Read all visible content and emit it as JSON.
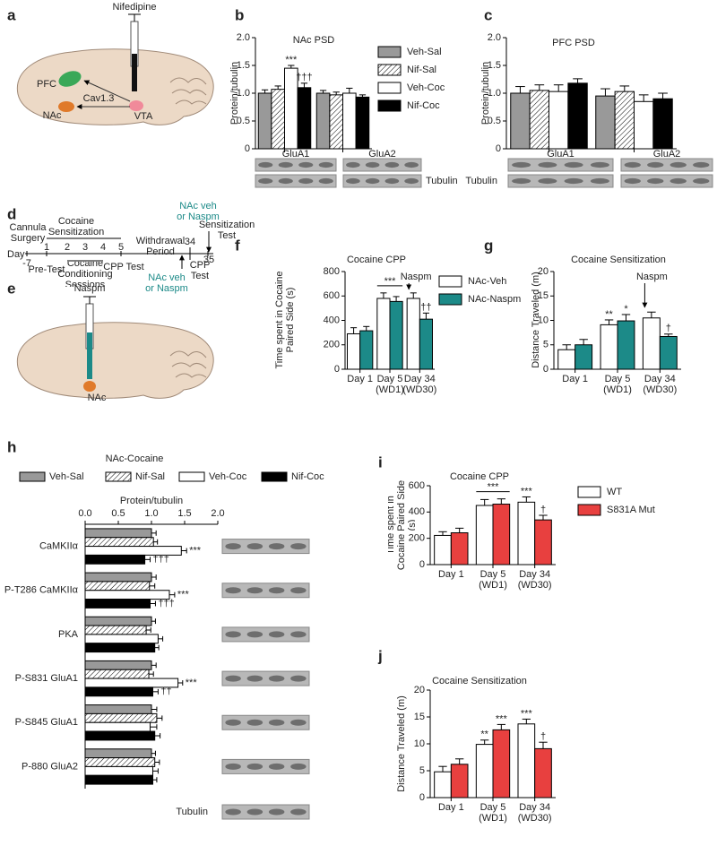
{
  "panel_labels": [
    "a",
    "b",
    "c",
    "d",
    "e",
    "f",
    "g",
    "h",
    "i",
    "j"
  ],
  "panel_a": {
    "drug": "Nifedipine",
    "region_1": "PFC",
    "channel": "Cav1.3",
    "region_2": "NAc",
    "region_3": "VTA"
  },
  "panel_d": {
    "start": "Cannula Surgery",
    "phase": "Cocaine Sensitization",
    "withdrawal": "Withdrawal Period",
    "injection_top": "NAc veh or Naspm",
    "final_test": "Sensitization Test",
    "day_label": "Day",
    "days": [
      "-7",
      "1",
      "2",
      "3",
      "4",
      "5",
      "34",
      "35"
    ],
    "pretest": "Pre-Test",
    "conditioning": "Cocaine Conditioning Sessions",
    "cpp_test_1": "CPP Test",
    "injection_bottom": "NAc veh or Naspm",
    "cpp_test_2": "CPP Test"
  },
  "panel_e": {
    "drug": "Naspm",
    "region": "NAc"
  },
  "chart_data": [
    {
      "type": "bar",
      "title": "NAc PSD",
      "ylabel": "Protein/tubulin",
      "categories": [
        "GluA1",
        "GluA2"
      ],
      "series": [
        {
          "name": "Veh-Sal",
          "color": "#999999",
          "values": [
            1.0,
            1.0
          ],
          "errors": [
            0.06,
            0.05
          ]
        },
        {
          "name": "Nif-Sal",
          "color": "#ffffff",
          "pattern": "hatch",
          "values": [
            1.07,
            0.97
          ],
          "errors": [
            0.06,
            0.05
          ]
        },
        {
          "name": "Veh-Coc",
          "color": "#ffffff",
          "values": [
            1.45,
            1.0
          ],
          "errors": [
            0.05,
            0.09
          ]
        },
        {
          "name": "Nif-Coc",
          "color": "#000000",
          "values": [
            1.1,
            0.93
          ],
          "errors": [
            0.08,
            0.04
          ]
        }
      ],
      "ylim": [
        0,
        2
      ],
      "yticks": [
        0,
        0.5,
        {
          "value": 1,
          "label": "1.0"
        },
        1.5,
        {
          "value": 2,
          "label": "2.0"
        }
      ],
      "legend": true,
      "annotations": [
        "***",
        "†††"
      ],
      "blot_labels": [
        "Tubulin"
      ]
    },
    {
      "type": "bar",
      "title": "PFC PSD",
      "ylabel": "Protein/tubulin",
      "categories": [
        "GluA1",
        "GluA2"
      ],
      "series": [
        {
          "name": "Veh-Sal",
          "color": "#999999",
          "values": [
            1.0,
            0.95
          ],
          "errors": [
            0.12,
            0.13
          ]
        },
        {
          "name": "Nif-Sal",
          "color": "#ffffff",
          "pattern": "hatch",
          "values": [
            1.05,
            1.03
          ],
          "errors": [
            0.1,
            0.1
          ]
        },
        {
          "name": "Veh-Coc",
          "color": "#ffffff",
          "values": [
            1.03,
            0.85
          ],
          "errors": [
            0.12,
            0.12
          ]
        },
        {
          "name": "Nif-Coc",
          "color": "#000000",
          "values": [
            1.18,
            0.9
          ],
          "errors": [
            0.08,
            0.1
          ]
        }
      ],
      "ylim": [
        0,
        2
      ],
      "yticks": [
        0,
        0.5,
        {
          "value": 1,
          "label": "1.0"
        },
        1.5,
        {
          "value": 2,
          "label": "2.0"
        }
      ],
      "legend": false,
      "annotations": [],
      "blot_labels": [
        "Tubulin"
      ]
    },
    {
      "type": "bar",
      "title": "Cocaine CPP",
      "ylabel": "Time spent in Cocaine Paired Side (s)",
      "categories": [
        "Day 1",
        "Day 5 (WD1)",
        "Day 34 (WD30)"
      ],
      "series": [
        {
          "name": "NAc-Veh",
          "color": "#ffffff",
          "values": [
            290,
            580,
            580
          ],
          "errors": [
            50,
            45,
            45
          ]
        },
        {
          "name": "NAc-Naspm",
          "color": "#1c8a88",
          "values": [
            315,
            555,
            410
          ],
          "errors": [
            35,
            40,
            50
          ]
        }
      ],
      "ylim": [
        0,
        800
      ],
      "yticks": [
        0,
        200,
        400,
        600,
        800
      ],
      "legend": true,
      "annotations": [
        "***",
        "Naspm",
        "††"
      ]
    },
    {
      "type": "bar",
      "title": "Cocaine Sensitization",
      "ylabel": "Distance Traveled (m)",
      "categories": [
        "Day 1",
        "Day 5 (WD1)",
        "Day 34 (WD30)"
      ],
      "series": [
        {
          "name": "NAc-Veh",
          "color": "#ffffff",
          "values": [
            4.0,
            9.1,
            10.5
          ],
          "errors": [
            1.0,
            1.0,
            1.2
          ]
        },
        {
          "name": "NAc-Naspm",
          "color": "#1c8a88",
          "values": [
            5.0,
            9.9,
            6.7
          ],
          "errors": [
            1.1,
            1.3,
            0.5
          ]
        }
      ],
      "ylim": [
        0,
        20
      ],
      "yticks": [
        0,
        5,
        10,
        15,
        20
      ],
      "legend": false,
      "annotations": [
        "**",
        "*",
        "Naspm",
        "†"
      ]
    },
    {
      "type": "bar",
      "orientation": "horizontal",
      "title": "NAc-Cocaine",
      "xlabel": "Protein/tubulin",
      "categories": [
        "CaMKIIα",
        "P-T286 CaMKIIα",
        "PKA",
        "P-S831 GluA1",
        "P-S845 GluA1",
        "P-880 GluA2"
      ],
      "series": [
        {
          "name": "Veh-Sal",
          "color": "#999999",
          "values": [
            1.0,
            1.0,
            1.0,
            1.0,
            1.0,
            1.0
          ],
          "errors": [
            0.07,
            0.07,
            0.06,
            0.07,
            0.08,
            0.06
          ]
        },
        {
          "name": "Nif-Sal",
          "color": "#ffffff",
          "pattern": "hatch",
          "values": [
            1.03,
            0.97,
            0.92,
            0.96,
            1.08,
            1.05
          ],
          "errors": [
            0.06,
            0.08,
            0.07,
            0.07,
            0.08,
            0.07
          ]
        },
        {
          "name": "Veh-Coc",
          "color": "#ffffff",
          "values": [
            1.45,
            1.27,
            1.1,
            1.4,
            0.98,
            1.02
          ],
          "errors": [
            0.08,
            0.08,
            0.07,
            0.07,
            0.1,
            0.08
          ]
        },
        {
          "name": "Nif-Coc",
          "color": "#000000",
          "values": [
            0.9,
            0.98,
            1.05,
            1.02,
            1.05,
            1.02
          ],
          "errors": [
            0.08,
            0.08,
            0.06,
            0.08,
            0.08,
            0.06
          ]
        }
      ],
      "xlim": [
        0,
        2
      ],
      "xticks": [
        {
          "value": 0,
          "label": "0.0"
        },
        0.5,
        {
          "value": 1,
          "label": "1.0"
        },
        1.5,
        {
          "value": 2,
          "label": "2.0"
        }
      ],
      "legend": true,
      "annotations": [
        "***",
        "†††",
        "***",
        "†††",
        "***",
        "††"
      ],
      "blot_labels": [
        "Tubulin"
      ]
    },
    {
      "type": "bar",
      "title": "Cocaine CPP",
      "ylabel": "Time spent in Cocaine Paired Side (s)",
      "categories": [
        "Day 1",
        "Day 5 (WD1)",
        "Day 34 (WD30)"
      ],
      "series": [
        {
          "name": "WT",
          "color": "#ffffff",
          "values": [
            222,
            450,
            475
          ],
          "errors": [
            28,
            45,
            40
          ]
        },
        {
          "name": "S831A Mut",
          "color": "#e8403f",
          "values": [
            242,
            460,
            340
          ],
          "errors": [
            35,
            40,
            35
          ]
        }
      ],
      "ylim": [
        0,
        600
      ],
      "yticks": [
        0,
        200,
        400,
        600
      ],
      "legend": true,
      "annotations": [
        "***",
        "***",
        "†"
      ]
    },
    {
      "type": "bar",
      "title": "Cocaine Sensitization",
      "ylabel": "Distance Traveled (m)",
      "categories": [
        "Day 1",
        "Day 5 (WD1)",
        "Day 34 (WD30)"
      ],
      "series": [
        {
          "name": "WT",
          "color": "#ffffff",
          "values": [
            4.8,
            9.9,
            13.7
          ],
          "errors": [
            1.0,
            0.8,
            0.9
          ]
        },
        {
          "name": "S831A Mut",
          "color": "#e8403f",
          "values": [
            6.2,
            12.6,
            9.1
          ],
          "errors": [
            1.0,
            1.0,
            1.2
          ]
        }
      ],
      "ylim": [
        0,
        20
      ],
      "yticks": [
        0,
        5,
        10,
        15,
        20
      ],
      "legend": false,
      "annotations": [
        "**",
        "***",
        "***",
        "†"
      ]
    }
  ]
}
